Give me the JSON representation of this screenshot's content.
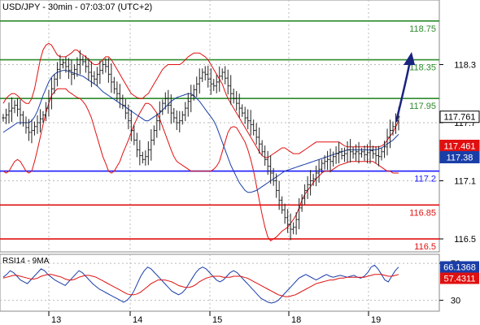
{
  "chart_data": [
    {
      "type": "ohlc",
      "title": "USD/JPY - 30min - 07:03:07 (UTC+2)",
      "ylim": [
        116.45,
        118.95
      ],
      "y_ticks": [
        116.5,
        117.1,
        117.7,
        118.3
      ],
      "x_ticks": [
        "13",
        "14",
        "15",
        "18",
        "19"
      ],
      "grid": true,
      "levels": [
        {
          "value": 118.75,
          "label": "118.75",
          "color": "#2e8b2e"
        },
        {
          "value": 118.35,
          "label": "118.35",
          "color": "#2e8b2e"
        },
        {
          "value": 117.95,
          "label": "117.95",
          "color": "#2e8b2e"
        },
        {
          "value": 117.2,
          "label": "117.2",
          "color": "#1a1aff"
        },
        {
          "value": 116.85,
          "label": "116.85",
          "color": "#e01010"
        },
        {
          "value": 116.5,
          "label": "116.5",
          "color": "#e01010"
        }
      ],
      "tags": [
        {
          "value": 117.761,
          "label": "117.761",
          "bg": "#ffffff",
          "fg": "#000000",
          "border": "#000000"
        },
        {
          "value": 117.461,
          "label": "117.461",
          "bg": "#e01010",
          "fg": "#ffffff",
          "border": "#e01010"
        },
        {
          "value": 117.38,
          "label": "117.38",
          "bg": "#1a3ea8",
          "fg": "#ffffff",
          "border": "#1a3ea8"
        }
      ],
      "close_series": [
        117.75,
        117.78,
        117.82,
        117.85,
        117.88,
        117.84,
        117.78,
        117.7,
        117.65,
        117.6,
        117.62,
        117.66,
        117.7,
        117.74,
        117.78,
        117.85,
        117.95,
        118.05,
        118.15,
        118.25,
        118.3,
        118.32,
        118.28,
        118.24,
        118.2,
        118.25,
        118.3,
        118.35,
        118.33,
        118.28,
        118.22,
        118.18,
        118.15,
        118.2,
        118.24,
        118.3,
        118.28,
        118.2,
        118.12,
        118.05,
        118.0,
        117.95,
        117.88,
        117.8,
        117.72,
        117.62,
        117.52,
        117.42,
        117.36,
        117.32,
        117.35,
        117.42,
        117.52,
        117.62,
        117.72,
        117.82,
        117.9,
        117.95,
        117.88,
        117.8,
        117.75,
        117.7,
        117.72,
        117.78,
        117.85,
        117.92,
        117.98,
        118.04,
        118.1,
        118.16,
        118.22,
        118.2,
        118.15,
        118.1,
        118.08,
        118.12,
        118.18,
        118.22,
        118.16,
        118.08,
        118.0,
        117.95,
        117.9,
        117.85,
        117.8,
        117.75,
        117.72,
        117.68,
        117.62,
        117.55,
        117.48,
        117.4,
        117.32,
        117.25,
        117.18,
        117.1,
        117.0,
        116.9,
        116.8,
        116.72,
        116.65,
        116.6,
        116.62,
        116.7,
        116.82,
        116.92,
        117.0,
        117.06,
        117.1,
        117.12,
        117.18,
        117.22,
        117.28,
        117.3,
        117.32,
        117.3,
        117.35,
        117.38,
        117.4,
        117.36,
        117.38,
        117.42,
        117.4,
        117.38,
        117.4,
        117.38,
        117.4,
        117.37,
        117.39,
        117.41,
        117.38,
        117.36,
        117.35,
        117.4,
        117.45,
        117.55,
        117.62,
        117.66,
        117.72,
        117.76
      ],
      "upper_band_series": [
        117.9,
        117.95,
        117.98,
        118.0,
        118.0,
        117.98,
        117.95,
        117.92,
        117.9,
        117.9,
        117.95,
        118.05,
        118.2,
        118.35,
        118.45,
        118.5,
        118.52,
        118.5,
        118.45,
        118.4,
        118.38,
        118.38,
        118.38,
        118.4,
        118.42,
        118.45,
        118.45,
        118.42,
        118.4,
        118.38,
        118.35,
        118.32,
        118.3,
        118.3,
        118.32,
        118.35,
        118.38,
        118.38,
        118.35,
        118.3,
        118.25,
        118.2,
        118.15,
        118.1,
        118.05,
        118.0,
        117.98,
        117.96,
        117.95,
        117.95,
        117.98,
        118.0,
        118.05,
        118.1,
        118.15,
        118.2,
        118.25,
        118.28,
        118.3,
        118.3,
        118.3,
        118.3,
        118.3,
        118.32,
        118.35,
        118.38,
        118.4,
        118.42,
        118.42,
        118.42,
        118.4,
        118.38,
        118.35,
        118.3,
        118.25,
        118.2,
        118.15,
        118.1,
        118.02,
        117.95,
        117.9,
        117.85,
        117.8,
        117.75,
        117.7,
        117.65,
        117.6,
        117.55,
        117.5,
        117.45,
        117.4,
        117.36,
        117.34,
        117.34,
        117.36,
        117.38,
        117.4,
        117.42,
        117.44,
        117.44,
        117.42,
        117.4,
        117.38,
        117.38,
        117.38,
        117.4,
        117.42,
        117.44,
        117.46,
        117.48,
        117.5,
        117.5,
        117.5,
        117.5,
        117.5,
        117.5,
        117.5,
        117.5,
        117.5,
        117.48,
        117.46,
        117.45,
        117.45,
        117.45,
        117.45,
        117.45,
        117.45,
        117.45,
        117.45,
        117.45,
        117.45,
        117.45,
        117.45,
        117.46,
        117.48,
        117.52,
        117.56,
        117.6,
        117.66,
        117.72
      ],
      "lower_band_series": [
        117.2,
        117.18,
        117.2,
        117.25,
        117.3,
        117.32,
        117.3,
        117.25,
        117.2,
        117.18,
        117.2,
        117.3,
        117.42,
        117.55,
        117.68,
        117.8,
        117.9,
        117.98,
        118.02,
        118.05,
        118.05,
        118.05,
        118.05,
        118.02,
        118.0,
        117.98,
        117.96,
        117.95,
        117.92,
        117.88,
        117.82,
        117.75,
        117.65,
        117.55,
        117.45,
        117.35,
        117.28,
        117.2,
        117.18,
        117.2,
        117.25,
        117.3,
        117.38,
        117.45,
        117.52,
        117.6,
        117.68,
        117.74,
        117.8,
        117.85,
        117.9,
        117.9,
        117.88,
        117.84,
        117.8,
        117.74,
        117.66,
        117.58,
        117.5,
        117.42,
        117.35,
        117.3,
        117.28,
        117.26,
        117.24,
        117.22,
        117.2,
        117.2,
        117.2,
        117.2,
        117.2,
        117.2,
        117.2,
        117.2,
        117.22,
        117.25,
        117.3,
        117.4,
        117.5,
        117.6,
        117.65,
        117.66,
        117.65,
        117.6,
        117.55,
        117.5,
        117.42,
        117.32,
        117.2,
        117.05,
        116.9,
        116.75,
        116.62,
        116.52,
        116.48,
        116.5,
        116.52,
        116.55,
        116.58,
        116.6,
        116.62,
        116.66,
        116.7,
        116.75,
        116.82,
        116.9,
        116.96,
        117.0,
        117.04,
        117.08,
        117.12,
        117.15,
        117.18,
        117.2,
        117.2,
        117.2,
        117.22,
        117.24,
        117.26,
        117.27,
        117.28,
        117.29,
        117.3,
        117.3,
        117.3,
        117.3,
        117.3,
        117.3,
        117.3,
        117.3,
        117.3,
        117.28,
        117.26,
        117.24,
        117.22,
        117.2,
        117.2,
        117.18,
        117.18,
        117.18
      ],
      "ma_series": [
        117.6,
        117.62,
        117.64,
        117.66,
        117.68,
        117.7,
        117.7,
        117.7,
        117.7,
        117.7,
        117.72,
        117.76,
        117.82,
        117.9,
        117.98,
        118.05,
        118.12,
        118.17,
        118.2,
        118.22,
        118.23,
        118.24,
        118.24,
        118.23,
        118.22,
        118.21,
        118.2,
        118.19,
        118.18,
        118.16,
        118.14,
        118.12,
        118.1,
        118.08,
        118.05,
        118.02,
        118.0,
        117.98,
        117.96,
        117.94,
        117.92,
        117.9,
        117.88,
        117.86,
        117.84,
        117.82,
        117.8,
        117.78,
        117.76,
        117.74,
        117.72,
        117.72,
        117.74,
        117.76,
        117.78,
        117.8,
        117.83,
        117.86,
        117.89,
        117.92,
        117.94,
        117.96,
        117.97,
        117.98,
        117.99,
        118.0,
        118.0,
        117.98,
        117.95,
        117.92,
        117.88,
        117.84,
        117.8,
        117.76,
        117.72,
        117.66,
        117.58,
        117.5,
        117.42,
        117.34,
        117.26,
        117.2,
        117.14,
        117.08,
        117.04,
        117.0,
        116.98,
        116.98,
        116.99,
        117.0,
        117.02,
        117.04,
        117.06,
        117.08,
        117.1,
        117.12,
        117.14,
        117.16,
        117.18,
        117.2,
        117.21,
        117.22,
        117.23,
        117.24,
        117.25,
        117.26,
        117.27,
        117.28,
        117.29,
        117.3,
        117.31,
        117.32,
        117.33,
        117.34,
        117.35,
        117.36,
        117.37,
        117.38,
        117.39,
        117.4,
        117.41,
        117.42,
        117.42,
        117.42,
        117.42,
        117.42,
        117.42,
        117.42,
        117.42,
        117.42,
        117.42,
        117.42,
        117.43,
        117.44,
        117.46,
        117.48,
        117.5,
        117.52,
        117.55,
        117.58
      ]
    },
    {
      "type": "line",
      "title": "RSI14 - 9MA",
      "ylim": [
        20,
        78
      ],
      "y_ticks": [
        30,
        70
      ],
      "grid": true,
      "series": [
        {
          "name": "RSI14",
          "color": "#1a3ea8",
          "values": [
            55,
            58,
            62,
            60,
            56,
            52,
            50,
            48,
            52,
            56,
            60,
            64,
            62,
            58,
            55,
            52,
            50,
            48,
            46,
            50,
            54,
            58,
            62,
            60,
            56,
            52,
            48,
            45,
            42,
            40,
            38,
            36,
            34,
            32,
            30,
            28,
            30,
            34,
            40,
            48,
            56,
            62,
            66,
            64,
            60,
            56,
            52,
            48,
            44,
            40,
            38,
            36,
            38,
            42,
            48,
            54,
            60,
            64,
            66,
            64,
            60,
            56,
            52,
            50,
            52,
            56,
            60,
            62,
            60,
            56,
            52,
            48,
            44,
            40,
            36,
            32,
            30,
            28,
            27,
            28,
            30,
            34,
            38,
            42,
            46,
            50,
            54,
            56,
            58,
            56,
            54,
            52,
            54,
            56,
            58,
            56,
            55,
            56,
            57,
            56,
            55,
            56,
            57,
            55,
            54,
            56,
            60,
            66,
            68,
            64,
            58,
            52,
            50,
            56,
            62,
            66
          ]
        },
        {
          "name": "9MA",
          "color": "#e01010",
          "values": [
            54,
            55,
            56,
            57,
            57,
            56,
            55,
            54,
            53,
            53,
            54,
            56,
            57,
            58,
            58,
            57,
            56,
            55,
            53,
            52,
            52,
            53,
            55,
            56,
            57,
            57,
            56,
            55,
            53,
            51,
            49,
            47,
            45,
            43,
            41,
            39,
            37,
            36,
            36,
            37,
            39,
            42,
            45,
            48,
            50,
            52,
            52,
            52,
            51,
            50,
            48,
            46,
            45,
            44,
            44,
            45,
            47,
            50,
            52,
            54,
            55,
            56,
            56,
            56,
            55,
            55,
            55,
            56,
            56,
            56,
            55,
            54,
            52,
            50,
            48,
            46,
            44,
            42,
            40,
            38,
            36,
            35,
            34,
            34,
            35,
            36,
            38,
            40,
            42,
            44,
            46,
            48,
            49,
            50,
            51,
            52,
            52,
            53,
            54,
            54,
            55,
            55,
            55,
            55,
            55,
            55,
            56,
            57,
            58,
            58,
            58,
            57,
            56,
            56,
            57,
            58
          ]
        }
      ],
      "tags": [
        {
          "value": 66.1368,
          "label": "66.1368",
          "bg": "#1a3ea8",
          "fg": "#ffffff"
        },
        {
          "value": 57.4311,
          "label": "57.4311",
          "bg": "#e01010",
          "fg": "#ffffff"
        }
      ]
    }
  ]
}
